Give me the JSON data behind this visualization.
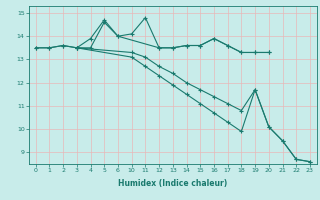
{
  "xlabel": "Humidex (Indice chaleur)",
  "bg_color": "#c8ecea",
  "line_color": "#1a7a6e",
  "grid_color": "#e8b8b8",
  "ylim": [
    8.5,
    15.3
  ],
  "yticks": [
    9,
    10,
    11,
    12,
    13,
    14,
    15
  ],
  "xtick_vals": [
    0,
    1,
    2,
    3,
    4,
    5,
    6,
    10,
    11,
    12,
    13,
    14,
    15,
    16,
    17,
    18,
    19,
    20,
    21,
    22,
    23
  ],
  "series": [
    {
      "x": [
        0,
        1,
        2,
        3,
        4,
        5,
        6,
        10,
        11,
        12,
        13,
        14,
        15,
        16,
        17,
        18,
        19,
        20
      ],
      "y": [
        13.5,
        13.5,
        13.6,
        13.5,
        13.5,
        14.6,
        14.0,
        14.1,
        14.8,
        13.5,
        13.5,
        13.6,
        13.6,
        13.9,
        13.6,
        13.3,
        13.3,
        13.3
      ]
    },
    {
      "x": [
        0,
        1,
        2,
        3,
        4,
        5,
        6,
        12,
        13,
        14,
        15,
        16,
        17,
        18,
        19,
        20
      ],
      "y": [
        13.5,
        13.5,
        13.6,
        13.5,
        13.9,
        14.7,
        14.0,
        13.5,
        13.5,
        13.6,
        13.6,
        13.9,
        13.6,
        13.3,
        13.3,
        13.3
      ]
    },
    {
      "x": [
        3,
        10,
        11,
        12,
        13,
        14,
        15,
        16,
        17,
        18,
        19,
        20,
        21,
        22,
        23
      ],
      "y": [
        13.5,
        13.3,
        13.1,
        12.7,
        12.4,
        12.0,
        11.7,
        11.4,
        11.1,
        10.8,
        11.7,
        10.1,
        9.5,
        8.7,
        8.6
      ]
    },
    {
      "x": [
        3,
        10,
        11,
        12,
        13,
        14,
        15,
        16,
        17,
        18,
        19,
        20,
        21,
        22,
        23
      ],
      "y": [
        13.5,
        13.1,
        12.7,
        12.3,
        11.9,
        11.5,
        11.1,
        10.7,
        10.3,
        9.9,
        11.7,
        10.1,
        9.5,
        8.7,
        8.6
      ]
    }
  ]
}
